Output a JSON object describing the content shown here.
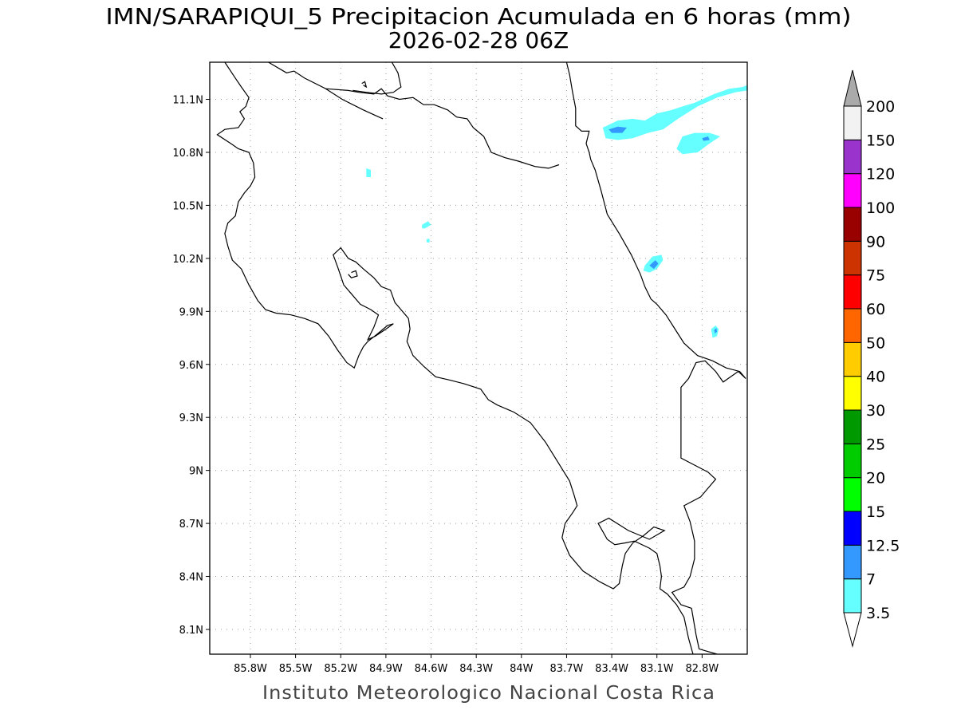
{
  "title": {
    "line1": "IMN/SARAPIQUI_5 Precipitacion Acumulada en 6 horas (mm)",
    "line2": "2026-02-28 06Z"
  },
  "credit": "Instituto Meteorologico Nacional Costa Rica",
  "chart_data": {
    "type": "heatmap",
    "title": "IMN/SARAPIQUI_5 Precipitacion Acumulada en 6 horas (mm)",
    "subtitle": "2026-02-28 06Z",
    "xlabel": "",
    "ylabel": "",
    "xlim": [
      -86.07,
      -82.5
    ],
    "ylim": [
      7.96,
      11.31
    ],
    "x_ticks": [
      {
        "value": -85.8,
        "label": "85.8W"
      },
      {
        "value": -85.5,
        "label": "85.5W"
      },
      {
        "value": -85.2,
        "label": "85.2W"
      },
      {
        "value": -84.9,
        "label": "84.9W"
      },
      {
        "value": -84.6,
        "label": "84.6W"
      },
      {
        "value": -84.3,
        "label": "84.3W"
      },
      {
        "value": -84.0,
        "label": "84W"
      },
      {
        "value": -83.7,
        "label": "83.7W"
      },
      {
        "value": -83.4,
        "label": "83.4W"
      },
      {
        "value": -83.1,
        "label": "83.1W"
      },
      {
        "value": -82.8,
        "label": "82.8W"
      }
    ],
    "y_ticks": [
      {
        "value": 11.1,
        "label": "11.1N"
      },
      {
        "value": 10.8,
        "label": "10.8N"
      },
      {
        "value": 10.5,
        "label": "10.5N"
      },
      {
        "value": 10.2,
        "label": "10.2N"
      },
      {
        "value": 9.9,
        "label": "9.9N"
      },
      {
        "value": 9.6,
        "label": "9.6N"
      },
      {
        "value": 9.3,
        "label": "9.3N"
      },
      {
        "value": 9.0,
        "label": "9N"
      },
      {
        "value": 8.7,
        "label": "8.7N"
      },
      {
        "value": 8.4,
        "label": "8.4N"
      },
      {
        "value": 8.1,
        "label": "8.1N"
      }
    ],
    "grid": true,
    "legend_placement": "right",
    "colorbar": {
      "levels": [
        "3.5",
        "7",
        "12.5",
        "15",
        "20",
        "25",
        "30",
        "40",
        "50",
        "60",
        "75",
        "90",
        "100",
        "120",
        "150",
        "200"
      ],
      "colors": [
        "#66ffff",
        "#3399ff",
        "#0000ff",
        "#00ff00",
        "#00cc00",
        "#009900",
        "#ffff00",
        "#ffcc00",
        "#ff6600",
        "#ff0000",
        "#cc3300",
        "#990000",
        "#ff00ff",
        "#9933cc",
        "#f2f2f2",
        "#aaaaaa"
      ]
    },
    "precipitation_areas": [
      {
        "color": "#66ffff",
        "points": [
          [
            -83.46,
            10.94
          ],
          [
            -83.36,
            10.98
          ],
          [
            -83.26,
            10.99
          ],
          [
            -83.18,
            10.98
          ],
          [
            -83.1,
            11.02
          ],
          [
            -83.0,
            11.04
          ],
          [
            -82.93,
            11.06
          ],
          [
            -82.85,
            11.08
          ],
          [
            -82.72,
            11.13
          ],
          [
            -82.62,
            11.16
          ],
          [
            -82.53,
            11.17
          ],
          [
            -82.5,
            11.18
          ],
          [
            -82.5,
            11.15
          ],
          [
            -82.58,
            11.14
          ],
          [
            -82.7,
            11.11
          ],
          [
            -82.83,
            11.06
          ],
          [
            -82.96,
            10.99
          ],
          [
            -83.06,
            10.93
          ],
          [
            -83.16,
            10.91
          ],
          [
            -83.26,
            10.88
          ],
          [
            -83.36,
            10.87
          ],
          [
            -83.44,
            10.88
          ]
        ]
      },
      {
        "color": "#3399ff",
        "points": [
          [
            -83.42,
            10.93
          ],
          [
            -83.36,
            10.945
          ],
          [
            -83.3,
            10.94
          ],
          [
            -83.33,
            10.91
          ],
          [
            -83.4,
            10.91
          ]
        ]
      },
      {
        "color": "#66ffff",
        "points": [
          [
            -82.93,
            10.89
          ],
          [
            -82.85,
            10.91
          ],
          [
            -82.75,
            10.91
          ],
          [
            -82.68,
            10.89
          ],
          [
            -82.75,
            10.85
          ],
          [
            -82.83,
            10.8
          ],
          [
            -82.93,
            10.79
          ],
          [
            -82.97,
            10.82
          ]
        ]
      },
      {
        "color": "#3399ff",
        "points": [
          [
            -82.8,
            10.88
          ],
          [
            -82.76,
            10.89
          ],
          [
            -82.75,
            10.87
          ],
          [
            -82.79,
            10.865
          ]
        ]
      },
      {
        "color": "#66ffff",
        "points": [
          [
            -83.18,
            10.16
          ],
          [
            -83.13,
            10.21
          ],
          [
            -83.07,
            10.22
          ],
          [
            -83.06,
            10.19
          ],
          [
            -83.1,
            10.14
          ],
          [
            -83.15,
            10.12
          ],
          [
            -83.19,
            10.13
          ]
        ]
      },
      {
        "color": "#3399ff",
        "points": [
          [
            -83.15,
            10.16
          ],
          [
            -83.11,
            10.19
          ],
          [
            -83.09,
            10.17
          ],
          [
            -83.12,
            10.14
          ]
        ]
      },
      {
        "color": "#66ffff",
        "points": [
          [
            -82.74,
            9.8
          ],
          [
            -82.71,
            9.82
          ],
          [
            -82.69,
            9.8
          ],
          [
            -82.7,
            9.76
          ],
          [
            -82.73,
            9.75
          ]
        ]
      },
      {
        "color": "#3399ff",
        "points": [
          [
            -82.72,
            9.795
          ],
          [
            -82.705,
            9.805
          ],
          [
            -82.7,
            9.785
          ],
          [
            -82.715,
            9.775
          ]
        ]
      },
      {
        "color": "#66ffff",
        "points": [
          [
            -84.66,
            10.39
          ],
          [
            -84.62,
            10.41
          ],
          [
            -84.6,
            10.39
          ],
          [
            -84.64,
            10.37
          ],
          [
            -84.66,
            10.37
          ]
        ]
      },
      {
        "color": "#66ffff",
        "points": [
          [
            -84.63,
            10.31
          ],
          [
            -84.61,
            10.31
          ],
          [
            -84.61,
            10.29
          ],
          [
            -84.63,
            10.29
          ]
        ]
      },
      {
        "color": "#66ffff",
        "points": [
          [
            -85.03,
            10.71
          ],
          [
            -85.0,
            10.7
          ],
          [
            -85.0,
            10.66
          ],
          [
            -85.03,
            10.66
          ]
        ]
      }
    ],
    "coastlines": [
      [
        [
          -85.97,
          11.31
        ],
        [
          -85.9,
          11.22
        ],
        [
          -85.86,
          11.17
        ],
        [
          -85.81,
          11.11
        ],
        [
          -85.83,
          11.06
        ],
        [
          -85.87,
          11.03
        ],
        [
          -85.84,
          10.99
        ],
        [
          -85.88,
          10.94
        ],
        [
          -85.97,
          10.93
        ],
        [
          -86.02,
          10.9
        ],
        [
          -85.93,
          10.85
        ],
        [
          -85.88,
          10.82
        ],
        [
          -85.81,
          10.8
        ],
        [
          -85.78,
          10.74
        ],
        [
          -85.77,
          10.66
        ],
        [
          -85.8,
          10.61
        ],
        [
          -85.84,
          10.57
        ],
        [
          -85.88,
          10.52
        ],
        [
          -85.9,
          10.44
        ],
        [
          -85.95,
          10.4
        ],
        [
          -85.97,
          10.34
        ],
        [
          -85.95,
          10.27
        ],
        [
          -85.92,
          10.19
        ],
        [
          -85.86,
          10.14
        ],
        [
          -85.81,
          10.05
        ],
        [
          -85.75,
          9.96
        ],
        [
          -85.7,
          9.91
        ],
        [
          -85.63,
          9.89
        ],
        [
          -85.53,
          9.88
        ],
        [
          -85.44,
          9.86
        ],
        [
          -85.35,
          9.83
        ],
        [
          -85.28,
          9.76
        ],
        [
          -85.22,
          9.68
        ],
        [
          -85.16,
          9.61
        ],
        [
          -85.11,
          9.58
        ],
        [
          -85.08,
          9.65
        ],
        [
          -85.05,
          9.7
        ],
        [
          -85.02,
          9.73
        ],
        [
          -84.96,
          9.77
        ],
        [
          -84.89,
          9.82
        ],
        [
          -84.85,
          9.83
        ],
        [
          -84.9,
          9.8
        ],
        [
          -84.97,
          9.76
        ],
        [
          -85.02,
          9.74
        ],
        [
          -84.98,
          9.81
        ],
        [
          -84.95,
          9.88
        ],
        [
          -85.0,
          9.91
        ],
        [
          -85.07,
          9.94
        ],
        [
          -85.13,
          10.0
        ],
        [
          -85.18,
          10.05
        ],
        [
          -85.2,
          10.1
        ],
        [
          -85.22,
          10.15
        ],
        [
          -85.25,
          10.22
        ],
        [
          -85.2,
          10.26
        ],
        [
          -85.15,
          10.2
        ],
        [
          -85.1,
          10.18
        ],
        [
          -85.05,
          10.14
        ],
        [
          -84.98,
          10.09
        ],
        [
          -84.93,
          10.04
        ],
        [
          -84.87,
          10.02
        ],
        [
          -84.84,
          9.95
        ],
        [
          -84.8,
          9.91
        ],
        [
          -84.75,
          9.86
        ],
        [
          -84.74,
          9.8
        ],
        [
          -84.76,
          9.73
        ],
        [
          -84.72,
          9.65
        ],
        [
          -84.65,
          9.59
        ],
        [
          -84.57,
          9.53
        ],
        [
          -84.47,
          9.51
        ],
        [
          -84.38,
          9.49
        ],
        [
          -84.27,
          9.46
        ],
        [
          -84.22,
          9.4
        ],
        [
          -84.16,
          9.37
        ],
        [
          -84.05,
          9.33
        ],
        [
          -83.94,
          9.27
        ],
        [
          -83.84,
          9.16
        ],
        [
          -83.76,
          9.05
        ],
        [
          -83.68,
          8.94
        ],
        [
          -83.65,
          8.86
        ],
        [
          -83.63,
          8.8
        ],
        [
          -83.66,
          8.76
        ],
        [
          -83.71,
          8.7
        ],
        [
          -83.73,
          8.62
        ],
        [
          -83.68,
          8.52
        ],
        [
          -83.59,
          8.43
        ],
        [
          -83.48,
          8.37
        ],
        [
          -83.39,
          8.33
        ],
        [
          -83.35,
          8.36
        ],
        [
          -83.33,
          8.46
        ],
        [
          -83.31,
          8.53
        ],
        [
          -83.26,
          8.59
        ],
        [
          -83.19,
          8.63
        ],
        [
          -83.12,
          8.68
        ],
        [
          -83.05,
          8.66
        ],
        [
          -83.15,
          8.61
        ],
        [
          -83.29,
          8.66
        ],
        [
          -83.42,
          8.73
        ],
        [
          -83.49,
          8.7
        ],
        [
          -83.43,
          8.61
        ],
        [
          -83.38,
          8.58
        ],
        [
          -83.31,
          8.59
        ],
        [
          -83.25,
          8.6
        ],
        [
          -83.15,
          8.56
        ],
        [
          -83.1,
          8.53
        ],
        [
          -83.08,
          8.46
        ],
        [
          -83.07,
          8.4
        ],
        [
          -83.08,
          8.33
        ],
        [
          -83.03,
          8.3
        ],
        [
          -82.97,
          8.24
        ],
        [
          -82.92,
          8.17
        ],
        [
          -82.89,
          8.05
        ],
        [
          -82.86,
          7.96
        ]
      ],
      [
        [
          -82.7,
          7.96
        ],
        [
          -82.82,
          7.99
        ],
        [
          -82.84,
          8.07
        ],
        [
          -82.87,
          8.22
        ],
        [
          -82.94,
          8.24
        ],
        [
          -83.0,
          8.31
        ],
        [
          -82.92,
          8.34
        ],
        [
          -82.88,
          8.4
        ],
        [
          -82.85,
          8.5
        ],
        [
          -82.85,
          8.6
        ],
        [
          -82.88,
          8.71
        ],
        [
          -82.92,
          8.8
        ],
        [
          -82.81,
          8.85
        ],
        [
          -82.75,
          8.91
        ],
        [
          -82.71,
          8.95
        ],
        [
          -82.76,
          8.99
        ],
        [
          -82.85,
          9.03
        ],
        [
          -82.94,
          9.07
        ],
        [
          -82.94,
          9.2
        ],
        [
          -82.94,
          9.35
        ],
        [
          -82.94,
          9.47
        ],
        [
          -82.89,
          9.52
        ],
        [
          -82.84,
          9.61
        ],
        [
          -82.78,
          9.62
        ],
        [
          -82.71,
          9.56
        ],
        [
          -82.66,
          9.5
        ],
        [
          -82.61,
          9.53
        ],
        [
          -82.56,
          9.56
        ],
        [
          -82.51,
          9.52
        ]
      ],
      [
        [
          -82.51,
          9.52
        ],
        [
          -82.55,
          9.56
        ],
        [
          -82.64,
          9.58
        ],
        [
          -82.73,
          9.62
        ],
        [
          -82.83,
          9.65
        ],
        [
          -82.92,
          9.72
        ],
        [
          -82.98,
          9.8
        ],
        [
          -83.04,
          9.88
        ],
        [
          -83.1,
          9.94
        ],
        [
          -83.14,
          9.97
        ],
        [
          -83.18,
          10.04
        ],
        [
          -83.21,
          10.11
        ],
        [
          -83.27,
          10.22
        ],
        [
          -83.35,
          10.34
        ],
        [
          -83.43,
          10.45
        ],
        [
          -83.47,
          10.58
        ],
        [
          -83.51,
          10.7
        ],
        [
          -83.54,
          10.76
        ],
        [
          -83.55,
          10.8
        ],
        [
          -83.57,
          10.85
        ],
        [
          -83.55,
          10.92
        ],
        [
          -83.6,
          10.92
        ],
        [
          -83.64,
          10.95
        ],
        [
          -83.64,
          11.05
        ],
        [
          -83.66,
          11.14
        ],
        [
          -83.68,
          11.24
        ],
        [
          -83.7,
          11.31
        ]
      ],
      [
        [
          -83.75,
          10.73
        ],
        [
          -83.82,
          10.71
        ],
        [
          -83.91,
          10.72
        ],
        [
          -84.02,
          10.75
        ],
        [
          -84.11,
          10.77
        ],
        [
          -84.2,
          10.8
        ],
        [
          -84.25,
          10.89
        ],
        [
          -84.32,
          10.94
        ],
        [
          -84.36,
          10.99
        ],
        [
          -84.43,
          11.0
        ],
        [
          -84.49,
          11.04
        ],
        [
          -84.58,
          11.07
        ],
        [
          -84.65,
          11.07
        ],
        [
          -84.72,
          11.11
        ],
        [
          -84.81,
          11.1
        ],
        [
          -84.89,
          11.12
        ],
        [
          -84.93,
          11.16
        ],
        [
          -84.98,
          11.13
        ],
        [
          -85.08,
          11.14
        ],
        [
          -85.15,
          11.15
        ],
        [
          -85.3,
          11.16
        ],
        [
          -85.44,
          11.22
        ],
        [
          -85.51,
          11.26
        ],
        [
          -85.56,
          11.25
        ],
        [
          -85.68,
          11.31
        ]
      ],
      [
        [
          -84.92,
          10.99
        ],
        [
          -85.05,
          11.04
        ],
        [
          -85.19,
          11.1
        ],
        [
          -85.3,
          11.16
        ]
      ],
      [
        [
          -84.86,
          11.31
        ],
        [
          -84.82,
          11.25
        ],
        [
          -84.8,
          11.17
        ],
        [
          -84.85,
          11.14
        ],
        [
          -84.93,
          11.13
        ],
        [
          -85.03,
          11.14
        ],
        [
          -85.12,
          11.15
        ]
      ],
      [
        [
          -85.06,
          11.19
        ],
        [
          -85.04,
          11.2
        ],
        [
          -85.03,
          11.17
        ],
        [
          -85.05,
          11.18
        ]
      ],
      [
        [
          -85.13,
          10.12
        ],
        [
          -85.1,
          10.13
        ],
        [
          -85.09,
          10.1
        ],
        [
          -85.13,
          10.09
        ],
        [
          -85.15,
          10.11
        ]
      ]
    ]
  }
}
